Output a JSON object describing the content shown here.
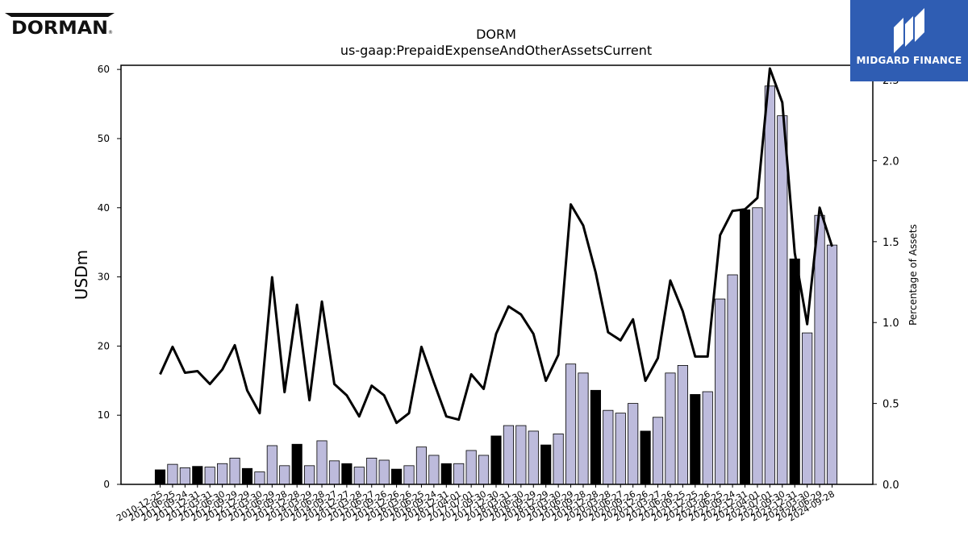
{
  "brand": {
    "name": "DORMAN"
  },
  "badge": {
    "text": "MIDGARD FINANCE"
  },
  "chart_data": {
    "type": "bar",
    "title": "DORM",
    "subtitle": "us-gaap:PrepaidExpenseAndOtherAssetsCurrent",
    "ylabel": "USDm",
    "y2label": "Percentage of Assets",
    "ylim": [
      0,
      60.6
    ],
    "y2lim": [
      0,
      2.59
    ],
    "yticks": [
      0,
      10,
      20,
      30,
      40,
      50,
      60
    ],
    "y2ticks": [
      "0.0",
      "0.5",
      "1.0",
      "1.5",
      "2.0",
      "2.5"
    ],
    "categories": [
      "2010-12-25",
      "2011-06-25",
      "2011-09-24",
      "2011-12-31",
      "2012-03-31",
      "2012-06-30",
      "2012-09-29",
      "2012-12-29",
      "2013-03-30",
      "2013-06-29",
      "2013-09-28",
      "2013-12-28",
      "2014-03-29",
      "2014-06-28",
      "2014-09-27",
      "2014-12-27",
      "2015-03-28",
      "2015-06-27",
      "2015-09-26",
      "2015-12-26",
      "2016-03-26",
      "2016-06-25",
      "2016-09-24",
      "2016-12-31",
      "2017-04-01",
      "2017-07-01",
      "2017-09-30",
      "2017-12-30",
      "2018-03-31",
      "2018-06-30",
      "2018-09-29",
      "2018-12-29",
      "2019-03-30",
      "2019-06-29",
      "2019-09-28",
      "2019-12-28",
      "2020-03-28",
      "2020-06-27",
      "2020-09-26",
      "2020-12-26",
      "2021-03-27",
      "2021-06-26",
      "2021-09-25",
      "2021-12-25",
      "2022-03-26",
      "2022-06-25",
      "2022-09-24",
      "2022-12-31",
      "2023-04-01",
      "2023-07-01",
      "2023-09-30",
      "2023-12-31",
      "2024-03-30",
      "2024-06-29",
      "2024-09-28"
    ],
    "series": [
      {
        "kind": "bar",
        "axis": "left",
        "values": [
          2.1,
          2.9,
          2.4,
          2.6,
          2.5,
          3.0,
          3.8,
          2.3,
          1.8,
          5.6,
          2.7,
          5.8,
          2.7,
          6.3,
          3.4,
          3.0,
          2.5,
          3.8,
          3.5,
          2.2,
          2.7,
          5.4,
          4.2,
          3.0,
          3.0,
          4.9,
          4.2,
          7.0,
          8.5,
          8.5,
          7.7,
          5.7,
          7.3,
          17.4,
          16.1,
          13.6,
          10.7,
          10.3,
          11.7,
          7.7,
          9.7,
          16.1,
          17.2,
          13.0,
          13.4,
          26.8,
          30.3,
          39.7,
          40.0,
          57.6,
          53.3,
          32.6,
          21.9,
          38.9,
          34.6
        ],
        "colors": [
          "black",
          "lavender",
          "lavender",
          "black",
          "lavender",
          "lavender",
          "lavender",
          "black",
          "lavender",
          "lavender",
          "lavender",
          "black",
          "lavender",
          "lavender",
          "lavender",
          "black",
          "lavender",
          "lavender",
          "lavender",
          "black",
          "lavender",
          "lavender",
          "lavender",
          "black",
          "lavender",
          "lavender",
          "lavender",
          "black",
          "lavender",
          "lavender",
          "lavender",
          "black",
          "lavender",
          "lavender",
          "lavender",
          "black",
          "lavender",
          "lavender",
          "lavender",
          "black",
          "lavender",
          "lavender",
          "lavender",
          "black",
          "lavender",
          "lavender",
          "lavender",
          "black",
          "lavender",
          "lavender",
          "lavender",
          "black",
          "lavender",
          "lavender",
          "lavender"
        ]
      },
      {
        "kind": "line",
        "axis": "right",
        "values": [
          0.68,
          0.85,
          0.69,
          0.7,
          0.62,
          0.71,
          0.86,
          0.58,
          0.44,
          1.28,
          0.57,
          1.11,
          0.52,
          1.13,
          0.62,
          0.55,
          0.42,
          0.61,
          0.55,
          0.38,
          0.44,
          0.85,
          0.63,
          0.42,
          0.4,
          0.68,
          0.59,
          0.93,
          1.1,
          1.05,
          0.93,
          0.64,
          0.8,
          1.73,
          1.6,
          1.31,
          0.94,
          0.89,
          1.02,
          0.64,
          0.78,
          1.26,
          1.07,
          0.79,
          0.79,
          1.54,
          1.69,
          1.7,
          1.77,
          2.57,
          2.36,
          1.43,
          0.99,
          1.71,
          1.47
        ]
      }
    ],
    "palette": {
      "black": "#000000",
      "lavender": "#bdbbdc",
      "line": "#000000"
    }
  }
}
